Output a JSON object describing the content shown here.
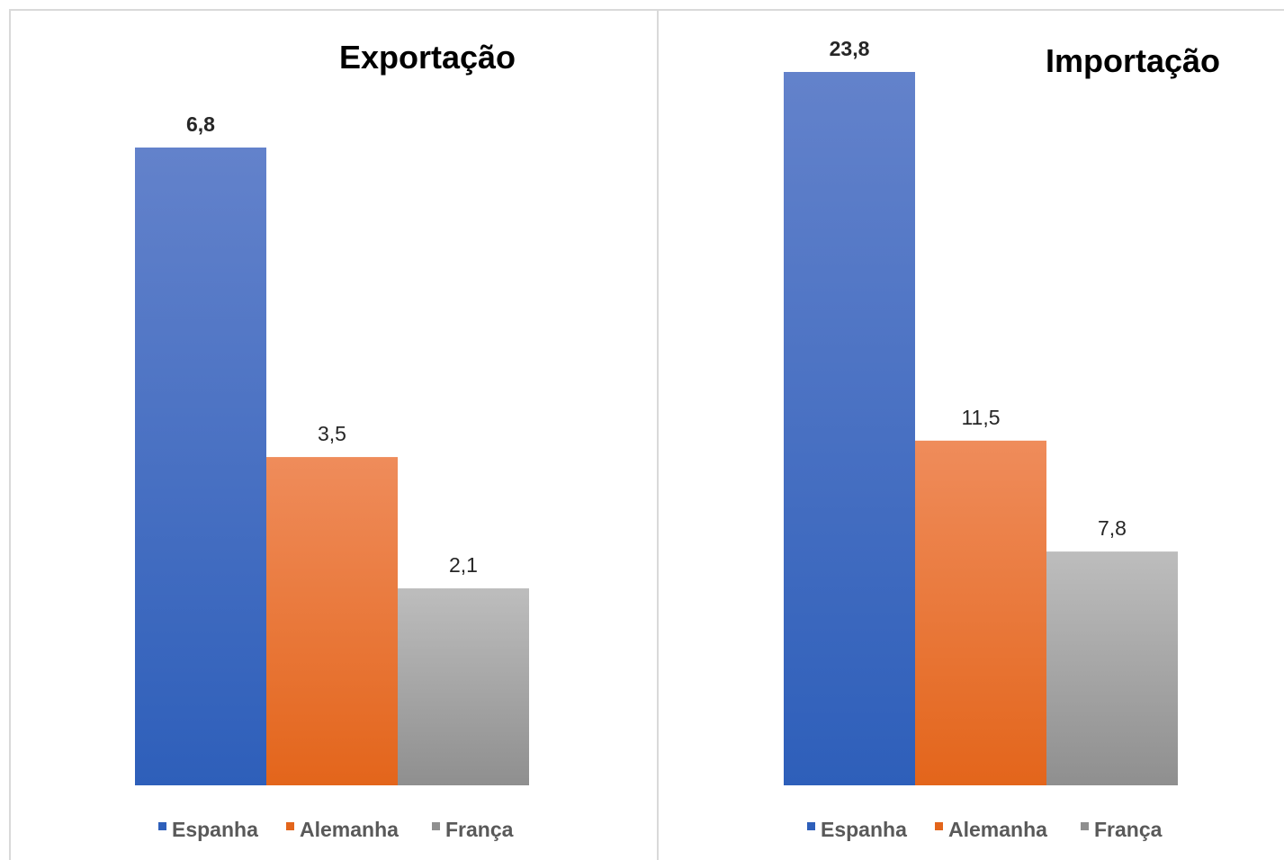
{
  "colors": {
    "Espanha": {
      "top": "#6382cb",
      "bottom": "#2e5fba"
    },
    "Alemanha": {
      "top": "#ef8c5b",
      "bottom": "#e3651b"
    },
    "França": {
      "top": "#bdbdbd",
      "bottom": "#8f8f8f"
    }
  },
  "chart_data": [
    {
      "type": "bar",
      "title": "Exportação",
      "categories": [
        "Espanha",
        "Alemanha",
        "França"
      ],
      "values": [
        6.8,
        3.5,
        2.1
      ],
      "labels": [
        "6,8",
        "3,5",
        "2,1"
      ],
      "legend": [
        "Espanha",
        "Alemanha",
        "França"
      ],
      "legend_position": "bottom",
      "grid": false
    },
    {
      "type": "bar",
      "title": "Importação",
      "categories": [
        "Espanha",
        "Alemanha",
        "França"
      ],
      "values": [
        23.8,
        11.5,
        7.8
      ],
      "labels": [
        "23,8",
        "11,5",
        "7,8"
      ],
      "legend": [
        "Espanha",
        "Alemanha",
        "França"
      ],
      "legend_position": "bottom",
      "grid": false
    }
  ]
}
